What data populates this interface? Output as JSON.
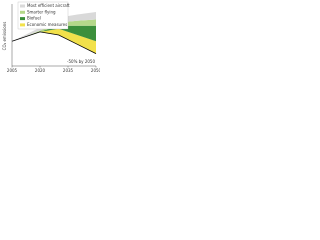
{
  "chart_data": {
    "type": "area",
    "y_label": "CO₂ emissions",
    "x": [
      2005,
      2010,
      2020,
      2030,
      2040,
      2050
    ],
    "xlim": [
      2005,
      2050
    ],
    "xticks": [
      2005,
      2020,
      2035,
      2050
    ],
    "ylim": [
      0,
      100
    ],
    "net_emissions": {
      "color": "#000000",
      "values": [
        40,
        45,
        55,
        50,
        35,
        20
      ]
    },
    "series": [
      {
        "name": "Economic measures",
        "color": "#f2e14b",
        "values": [
          0,
          0,
          0,
          10,
          15,
          20
        ]
      },
      {
        "name": "Biofuel",
        "color": "#3c8f3c",
        "values": [
          0,
          0,
          0,
          5,
          15,
          25
        ]
      },
      {
        "name": "Smarter flying",
        "color": "#b5d88a",
        "values": [
          0,
          0,
          2,
          5,
          8,
          10
        ]
      },
      {
        "name": "Most efficient aircraft",
        "color": "#d9d9d9",
        "values": [
          0,
          2,
          5,
          8,
          10,
          12
        ]
      }
    ],
    "annotation": "-50% by 2050"
  }
}
